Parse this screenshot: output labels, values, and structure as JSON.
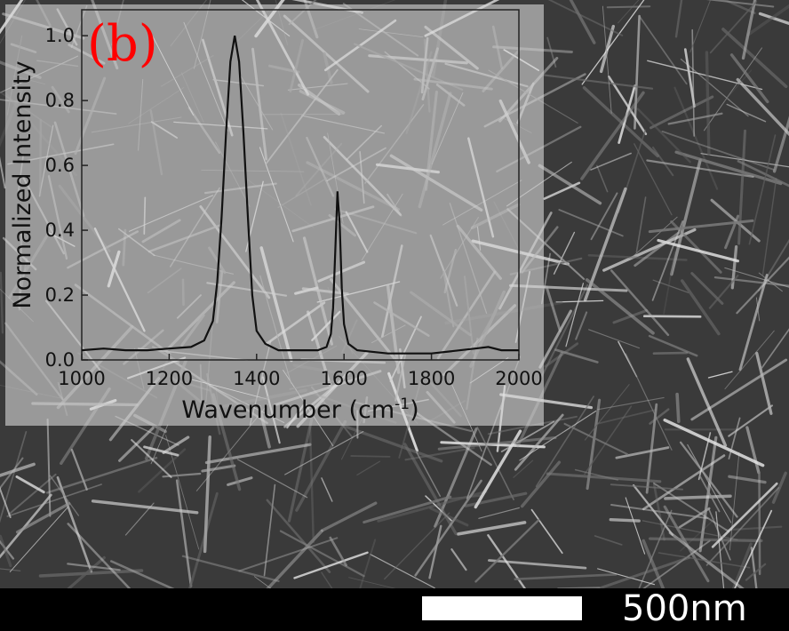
{
  "figure": {
    "panel_label": "(b)",
    "panel_label_color": "#ff0000",
    "background": "SEM micrograph of needle-like nanostructures (grayscale)",
    "scale_bar": {
      "label": "500nm",
      "color": "#ffffff"
    }
  },
  "chart_data": {
    "type": "line",
    "xlabel": "Wavenumber (cm",
    "xlabel_superscript": "-1",
    "xlabel_suffix": ")",
    "ylabel": "Normalized Intensity",
    "xlim": [
      1000,
      2000
    ],
    "ylim": [
      0,
      1.08
    ],
    "x_ticks": [
      1000,
      1200,
      1400,
      1600,
      1800,
      2000
    ],
    "x_tick_labels": [
      "1000",
      "1200",
      "1400",
      "1600",
      "1800",
      "2000"
    ],
    "y_ticks": [
      0,
      0.2,
      0.4,
      0.6,
      0.8,
      1.0
    ],
    "y_tick_labels": [
      "0.0",
      "0.2",
      "0.4",
      "0.6",
      "0.8",
      "1.0"
    ],
    "grid": false,
    "line_color": "#111111",
    "series": [
      {
        "x": [
          1000,
          1050,
          1100,
          1150,
          1200,
          1250,
          1280,
          1300,
          1310,
          1320,
          1330,
          1340,
          1350,
          1360,
          1370,
          1380,
          1390,
          1400,
          1420,
          1450,
          1500,
          1540,
          1560,
          1570,
          1575,
          1580,
          1585,
          1590,
          1595,
          1600,
          1610,
          1630,
          1700,
          1800,
          1900,
          1930,
          1960,
          2000
        ],
        "y": [
          0.03,
          0.035,
          0.03,
          0.03,
          0.035,
          0.04,
          0.06,
          0.12,
          0.24,
          0.44,
          0.7,
          0.92,
          1.0,
          0.92,
          0.7,
          0.44,
          0.2,
          0.09,
          0.05,
          0.03,
          0.03,
          0.03,
          0.04,
          0.08,
          0.16,
          0.34,
          0.52,
          0.42,
          0.22,
          0.11,
          0.05,
          0.03,
          0.02,
          0.02,
          0.035,
          0.04,
          0.03,
          0.03
        ]
      }
    ]
  }
}
